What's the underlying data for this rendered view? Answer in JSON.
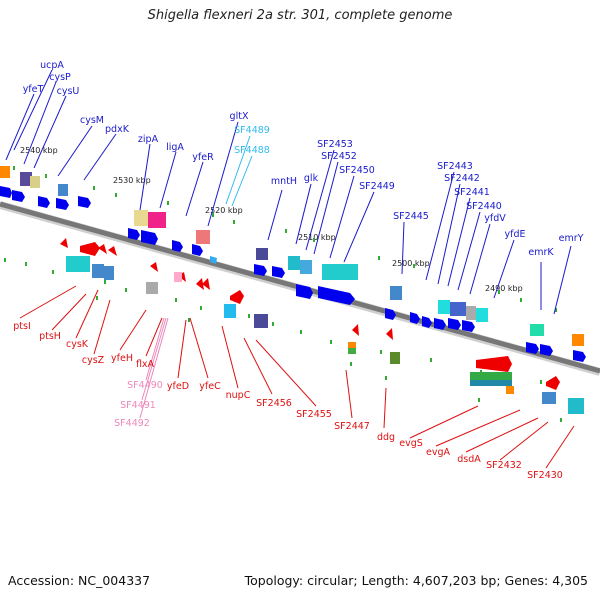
{
  "title": "Shigella flexneri 2a str. 301, complete genome",
  "footer": {
    "accession": "Accession: NC_004337",
    "topology": "Topology: circular; Length: 4,607,203 bp; Genes: 4,305"
  },
  "colors": {
    "backbone": "#777777",
    "forward_label": "#1a1acc",
    "reverse_label": "#dd1111",
    "rna_label": "#33bbee",
    "pseudo_label": "#ee88bb",
    "forward_gene": "#0000ee",
    "reverse_gene": "#ee0000"
  },
  "scale": {
    "ticks": [
      "2540 kbp",
      "2530 kbp",
      "2520 kbp",
      "2510 kbp",
      "2500 kbp",
      "2490 kbp"
    ]
  },
  "labels_top": [
    "ucpA",
    "cysP",
    "yfeT",
    "cysU",
    "cysM",
    "pdxK",
    "zipA",
    "ligA",
    "yfeR",
    "gltX",
    "SF4489",
    "SF4488",
    "SF2453",
    "SF2452",
    "mntH",
    "glk",
    "SF2450",
    "SF2449",
    "SF2443",
    "SF2442",
    "SF2441",
    "SF2440",
    "SF2445",
    "yfdV",
    "yfdE",
    "emrK",
    "emrY"
  ],
  "labels_bottom": [
    "ptsI",
    "ptsH",
    "cysK",
    "cysZ",
    "yfeH",
    "flxA",
    "SF4490",
    "SF4491",
    "SF4492",
    "yfeD",
    "yfeC",
    "nupC",
    "SF2456",
    "SF2455",
    "SF2447",
    "ddg",
    "evgS",
    "evgA",
    "dsdA",
    "SF2432",
    "SF2430"
  ]
}
